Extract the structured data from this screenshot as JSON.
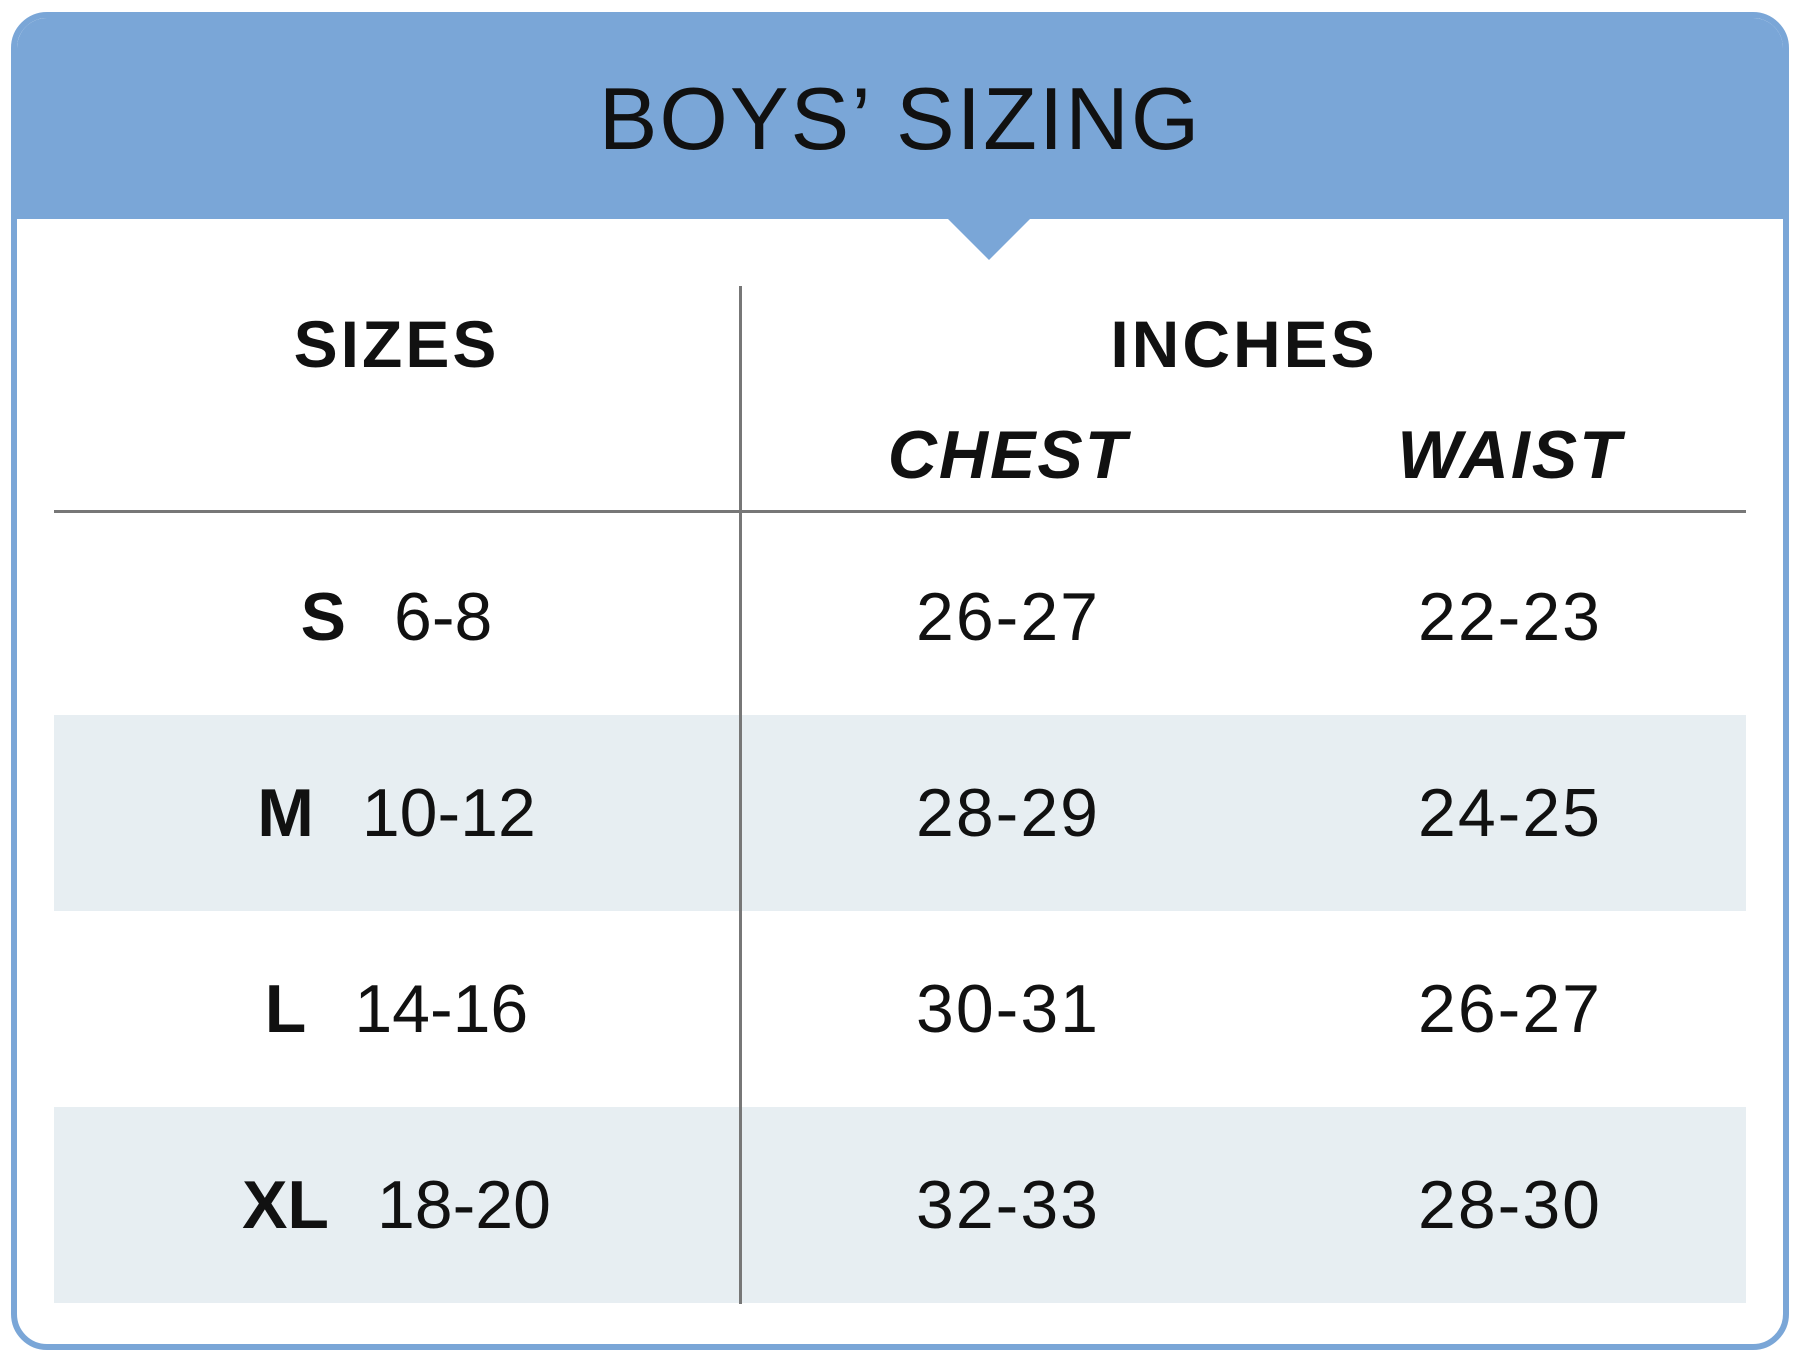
{
  "title": "BOYS’ SIZING",
  "colors": {
    "accent": "#7aa6d7",
    "band": "#e7eef2",
    "rule": "#777777",
    "text": "#111111"
  },
  "table": {
    "headers": {
      "sizes": "SIZES",
      "inches": "INCHES",
      "chest": "CHEST",
      "waist": "WAIST"
    },
    "rows": [
      {
        "code": "S",
        "range": "6-8",
        "chest": "26-27",
        "waist": "22-23"
      },
      {
        "code": "M",
        "range": "10-12",
        "chest": "28-29",
        "waist": "24-25"
      },
      {
        "code": "L",
        "range": "14-16",
        "chest": "30-31",
        "waist": "26-27"
      },
      {
        "code": "XL",
        "range": "18-20",
        "chest": "32-33",
        "waist": "28-30"
      }
    ]
  }
}
